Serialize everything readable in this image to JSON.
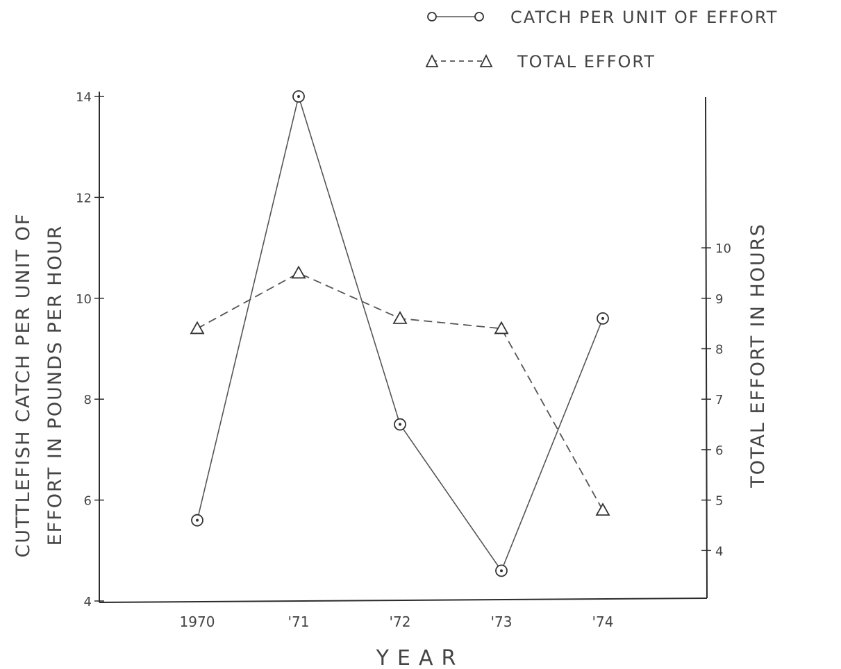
{
  "chart_data": {
    "type": "line",
    "title": "",
    "xlabel": "YEAR",
    "ylabel_left_line1": "CUTTLEFISH   CATCH PER UNIT   OF",
    "ylabel_left_line2": "EFFORT IN   POUNDS   PER  HOUR",
    "ylabel_right": "TOTAL  EFFORT  IN  HOURS",
    "categories": [
      "1970",
      "'71",
      "'72",
      "'73",
      "'74"
    ],
    "x": [
      1970,
      1971,
      1972,
      1973,
      1974
    ],
    "y_left_ticks": [
      "4",
      "6",
      "8",
      "10",
      "12",
      "14"
    ],
    "y_left_tick_values": [
      4,
      6,
      8,
      10,
      12,
      14
    ],
    "ylim_left": [
      4,
      14
    ],
    "y_right_ticks": [
      "4",
      "5",
      "6",
      "7",
      "8",
      "9",
      "10"
    ],
    "y_right_tick_values": [
      4,
      5,
      6,
      7,
      8,
      9,
      10
    ],
    "ylim_right": [
      3,
      13
    ],
    "grid": false,
    "legend_position": "top-right",
    "series": [
      {
        "name": "CATCH  PER UNIT  OF  EFFORT",
        "axis": "left",
        "marker": "circle",
        "line": "solid",
        "values": [
          5.6,
          14.0,
          7.5,
          4.6,
          9.6
        ]
      },
      {
        "name": "TOTAL  EFFORT",
        "axis": "right",
        "marker": "triangle",
        "line": "dashed",
        "values": [
          8.4,
          9.5,
          8.6,
          8.4,
          4.8
        ]
      }
    ]
  }
}
